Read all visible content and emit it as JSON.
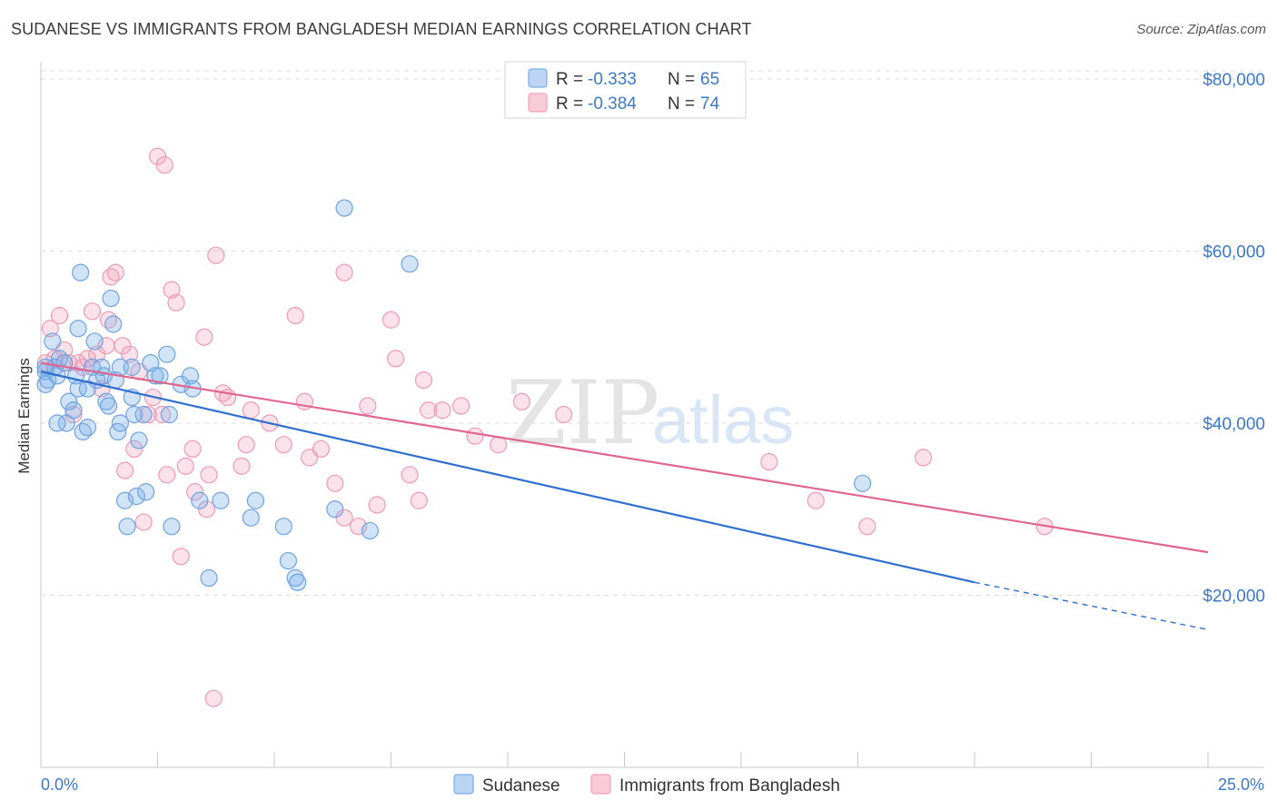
{
  "title": "SUDANESE VS IMMIGRANTS FROM BANGLADESH MEDIAN EARNINGS CORRELATION CHART",
  "source": "Source: ZipAtlas.com",
  "watermark": {
    "zip": "ZIP",
    "atlas": "atlas"
  },
  "colors": {
    "blue": "#7aaee8",
    "blue_line": "#2f6fce",
    "pink": "#f2a0b8",
    "pink_line": "#e06690",
    "axis_text": "#3d78c8",
    "grid": "#dcdcdc"
  },
  "legend": {
    "r_label": "R =",
    "n_label": "N =",
    "items": [
      {
        "r": "-0.333",
        "n": "65",
        "color": "blue"
      },
      {
        "r": "-0.384",
        "n": "74",
        "color": "pink"
      }
    ]
  },
  "bottom_legend": [
    "Sudanese",
    "Immigrants from Bangladesh"
  ],
  "chart_data": {
    "type": "scatter",
    "ylabel": "Median Earnings",
    "xlim": [
      0,
      25
    ],
    "ylim": [
      0,
      82000
    ],
    "x_tick_labels": [
      "0.0%",
      "25.0%"
    ],
    "y_ticks": [
      20000,
      40000,
      60000,
      80000
    ],
    "y_tick_labels": [
      "$20,000",
      "$40,000",
      "$60,000",
      "$80,000"
    ],
    "series": [
      {
        "name": "Sudanese",
        "color": "blue",
        "trend": {
          "x0": 0,
          "y0": 46000,
          "x1": 20,
          "y1": 21500,
          "dash_to_x": 25,
          "dash_to_y": 16000
        },
        "points": [
          [
            0.1,
            46000
          ],
          [
            0.1,
            44500
          ],
          [
            0.15,
            45000
          ],
          [
            0.25,
            49500
          ],
          [
            0.3,
            46500
          ],
          [
            0.35,
            45500
          ],
          [
            0.4,
            47500
          ],
          [
            0.5,
            47000
          ],
          [
            0.55,
            40000
          ],
          [
            0.6,
            42500
          ],
          [
            0.7,
            41500
          ],
          [
            0.75,
            45500
          ],
          [
            0.8,
            44000
          ],
          [
            0.8,
            51000
          ],
          [
            0.85,
            57500
          ],
          [
            0.9,
            39000
          ],
          [
            1.0,
            44000
          ],
          [
            1.0,
            39500
          ],
          [
            1.1,
            46500
          ],
          [
            1.15,
            49500
          ],
          [
            1.2,
            45000
          ],
          [
            1.3,
            46500
          ],
          [
            1.35,
            45500
          ],
          [
            1.4,
            42500
          ],
          [
            1.45,
            42000
          ],
          [
            1.5,
            54500
          ],
          [
            1.55,
            51500
          ],
          [
            1.6,
            45000
          ],
          [
            1.65,
            39000
          ],
          [
            1.7,
            40000
          ],
          [
            1.7,
            46500
          ],
          [
            1.8,
            31000
          ],
          [
            1.85,
            28000
          ],
          [
            1.95,
            46500
          ],
          [
            1.95,
            43000
          ],
          [
            2.0,
            41000
          ],
          [
            2.05,
            31500
          ],
          [
            2.1,
            38000
          ],
          [
            2.2,
            41000
          ],
          [
            2.25,
            32000
          ],
          [
            2.35,
            47000
          ],
          [
            2.45,
            45500
          ],
          [
            2.55,
            45500
          ],
          [
            2.7,
            48000
          ],
          [
            2.8,
            28000
          ],
          [
            2.75,
            41000
          ],
          [
            3.0,
            44500
          ],
          [
            3.2,
            45500
          ],
          [
            3.25,
            44000
          ],
          [
            3.4,
            31000
          ],
          [
            3.6,
            22000
          ],
          [
            3.85,
            31000
          ],
          [
            4.5,
            29000
          ],
          [
            4.6,
            31000
          ],
          [
            5.2,
            28000
          ],
          [
            5.3,
            24000
          ],
          [
            5.45,
            22000
          ],
          [
            5.5,
            21500
          ],
          [
            6.3,
            30000
          ],
          [
            6.5,
            65000
          ],
          [
            7.05,
            27500
          ],
          [
            7.9,
            58500
          ],
          [
            17.6,
            33000
          ],
          [
            0.1,
            46500
          ],
          [
            0.35,
            40000
          ]
        ]
      },
      {
        "name": "Immigrants from Bangladesh",
        "color": "pink",
        "trend": {
          "x0": 0,
          "y0": 47000,
          "x1": 25,
          "y1": 25000
        },
        "points": [
          [
            0.1,
            47000
          ],
          [
            0.2,
            51000
          ],
          [
            0.3,
            47500
          ],
          [
            0.4,
            52500
          ],
          [
            0.5,
            48500
          ],
          [
            0.6,
            47000
          ],
          [
            0.7,
            41000
          ],
          [
            0.8,
            47000
          ],
          [
            0.9,
            46500
          ],
          [
            1.0,
            47500
          ],
          [
            1.1,
            53000
          ],
          [
            1.2,
            48000
          ],
          [
            1.3,
            44000
          ],
          [
            1.4,
            49000
          ],
          [
            1.45,
            52000
          ],
          [
            1.5,
            57000
          ],
          [
            1.6,
            57500
          ],
          [
            1.75,
            49000
          ],
          [
            1.8,
            34500
          ],
          [
            1.9,
            48000
          ],
          [
            2.0,
            37000
          ],
          [
            2.1,
            46000
          ],
          [
            2.2,
            28500
          ],
          [
            2.3,
            41000
          ],
          [
            2.4,
            43000
          ],
          [
            2.5,
            71000
          ],
          [
            2.6,
            41000
          ],
          [
            2.65,
            70000
          ],
          [
            2.7,
            34000
          ],
          [
            2.8,
            55500
          ],
          [
            2.9,
            54000
          ],
          [
            3.0,
            24500
          ],
          [
            3.1,
            35000
          ],
          [
            3.25,
            37000
          ],
          [
            3.3,
            32000
          ],
          [
            3.5,
            50000
          ],
          [
            3.55,
            30000
          ],
          [
            3.6,
            34000
          ],
          [
            3.7,
            8000
          ],
          [
            3.75,
            59500
          ],
          [
            3.9,
            43500
          ],
          [
            4.0,
            43000
          ],
          [
            4.3,
            35000
          ],
          [
            4.4,
            37500
          ],
          [
            4.5,
            41500
          ],
          [
            4.9,
            40000
          ],
          [
            5.2,
            37500
          ],
          [
            5.45,
            52500
          ],
          [
            5.65,
            42500
          ],
          [
            5.75,
            36000
          ],
          [
            6.0,
            37000
          ],
          [
            6.3,
            33000
          ],
          [
            6.5,
            57500
          ],
          [
            6.5,
            29000
          ],
          [
            6.8,
            28000
          ],
          [
            7.0,
            42000
          ],
          [
            7.2,
            30500
          ],
          [
            7.5,
            52000
          ],
          [
            7.6,
            47500
          ],
          [
            7.9,
            34000
          ],
          [
            8.1,
            31000
          ],
          [
            8.2,
            45000
          ],
          [
            8.3,
            41500
          ],
          [
            8.6,
            41500
          ],
          [
            9.0,
            42000
          ],
          [
            9.3,
            38500
          ],
          [
            9.8,
            37500
          ],
          [
            10.3,
            42500
          ],
          [
            11.2,
            41000
          ],
          [
            15.6,
            35500
          ],
          [
            16.6,
            31000
          ],
          [
            17.7,
            28000
          ],
          [
            18.9,
            36000
          ],
          [
            21.5,
            28000
          ]
        ]
      }
    ]
  }
}
